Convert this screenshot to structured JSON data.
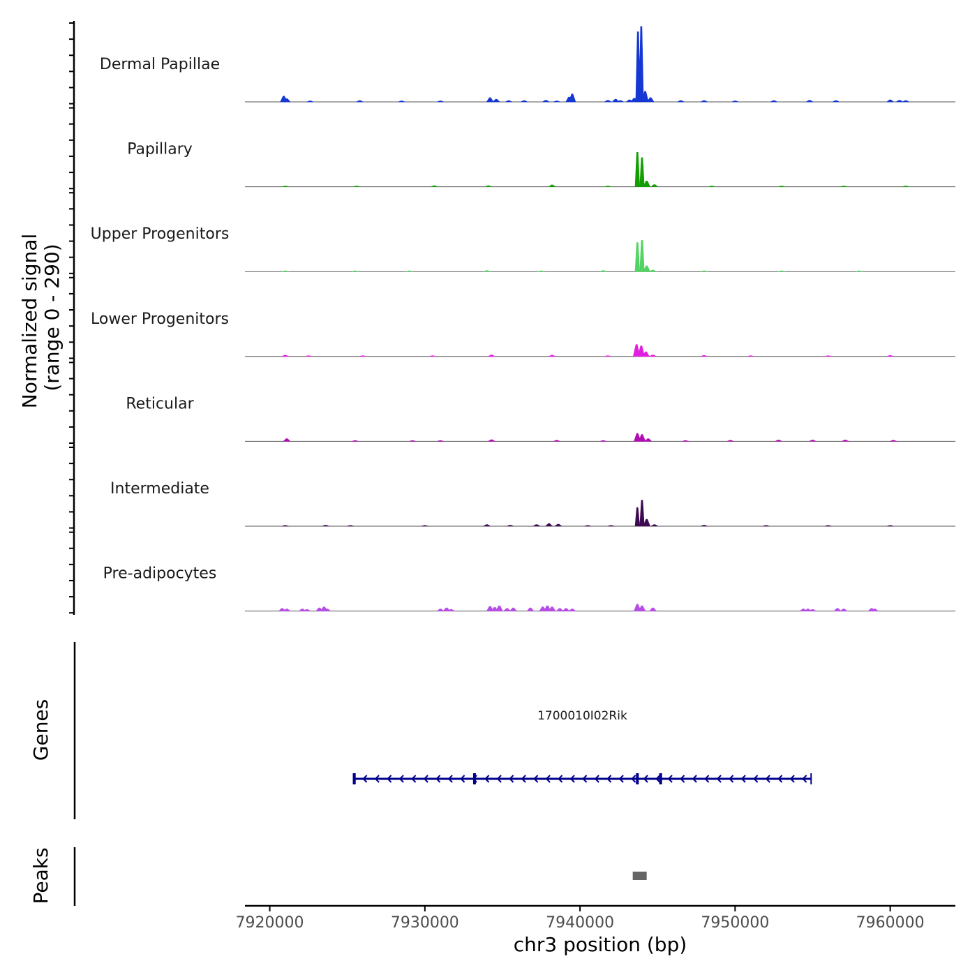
{
  "chart_data": {
    "type": "area",
    "title": "",
    "ylabel": "Normalized signal",
    "ylabel_range": "(range 0 - 290)",
    "ylim": [
      0,
      290
    ],
    "xlabel": "chr3 position (bp)",
    "xlim": [
      7918400,
      7964200
    ],
    "x_ticks": [
      7920000,
      7930000,
      7940000,
      7950000,
      7960000
    ],
    "x_tick_labels": [
      "7920000",
      "7930000",
      "7940000",
      "7950000",
      "7960000"
    ],
    "tracks": [
      {
        "name": "Dermal Papillae",
        "color": "#1537d4",
        "peaks": [
          {
            "x": 7920900,
            "y": 22
          },
          {
            "x": 7921100,
            "y": 12
          },
          {
            "x": 7922600,
            "y": 4
          },
          {
            "x": 7925800,
            "y": 5
          },
          {
            "x": 7928500,
            "y": 4
          },
          {
            "x": 7931000,
            "y": 4
          },
          {
            "x": 7934200,
            "y": 16
          },
          {
            "x": 7934600,
            "y": 10
          },
          {
            "x": 7935400,
            "y": 5
          },
          {
            "x": 7936400,
            "y": 5
          },
          {
            "x": 7937800,
            "y": 6
          },
          {
            "x": 7938500,
            "y": 4
          },
          {
            "x": 7939300,
            "y": 18
          },
          {
            "x": 7939500,
            "y": 30
          },
          {
            "x": 7941800,
            "y": 6
          },
          {
            "x": 7942300,
            "y": 10
          },
          {
            "x": 7942600,
            "y": 5
          },
          {
            "x": 7943200,
            "y": 8
          },
          {
            "x": 7943500,
            "y": 14
          },
          {
            "x": 7943740,
            "y": 265
          },
          {
            "x": 7943950,
            "y": 285
          },
          {
            "x": 7944200,
            "y": 40
          },
          {
            "x": 7944550,
            "y": 16
          },
          {
            "x": 7946500,
            "y": 5
          },
          {
            "x": 7948000,
            "y": 5
          },
          {
            "x": 7950000,
            "y": 4
          },
          {
            "x": 7952500,
            "y": 5
          },
          {
            "x": 7954800,
            "y": 6
          },
          {
            "x": 7956500,
            "y": 5
          },
          {
            "x": 7960000,
            "y": 8
          },
          {
            "x": 7960600,
            "y": 6
          },
          {
            "x": 7961000,
            "y": 5
          }
        ]
      },
      {
        "name": "Papillary",
        "color": "#139e02",
        "peaks": [
          {
            "x": 7921000,
            "y": 3
          },
          {
            "x": 7925600,
            "y": 3
          },
          {
            "x": 7930600,
            "y": 4
          },
          {
            "x": 7934100,
            "y": 4
          },
          {
            "x": 7938200,
            "y": 7
          },
          {
            "x": 7941800,
            "y": 3
          },
          {
            "x": 7943700,
            "y": 130
          },
          {
            "x": 7944000,
            "y": 110
          },
          {
            "x": 7944300,
            "y": 22
          },
          {
            "x": 7944800,
            "y": 8
          },
          {
            "x": 7948500,
            "y": 3
          },
          {
            "x": 7953000,
            "y": 3
          },
          {
            "x": 7957000,
            "y": 3
          },
          {
            "x": 7961000,
            "y": 3
          }
        ]
      },
      {
        "name": "Upper Progenitors",
        "color": "#52d462",
        "peaks": [
          {
            "x": 7921000,
            "y": 3
          },
          {
            "x": 7925500,
            "y": 3
          },
          {
            "x": 7929000,
            "y": 3
          },
          {
            "x": 7934000,
            "y": 4
          },
          {
            "x": 7937500,
            "y": 3
          },
          {
            "x": 7941500,
            "y": 4
          },
          {
            "x": 7943700,
            "y": 110
          },
          {
            "x": 7944000,
            "y": 118
          },
          {
            "x": 7944300,
            "y": 22
          },
          {
            "x": 7944700,
            "y": 6
          },
          {
            "x": 7948000,
            "y": 3
          },
          {
            "x": 7953000,
            "y": 3
          },
          {
            "x": 7958000,
            "y": 3
          }
        ]
      },
      {
        "name": "Lower Progenitors",
        "color": "#e01fe0",
        "peaks": [
          {
            "x": 7921000,
            "y": 5
          },
          {
            "x": 7922500,
            "y": 3
          },
          {
            "x": 7926000,
            "y": 3
          },
          {
            "x": 7930500,
            "y": 3
          },
          {
            "x": 7934300,
            "y": 6
          },
          {
            "x": 7938200,
            "y": 5
          },
          {
            "x": 7941800,
            "y": 3
          },
          {
            "x": 7943650,
            "y": 45
          },
          {
            "x": 7943950,
            "y": 40
          },
          {
            "x": 7944250,
            "y": 18
          },
          {
            "x": 7944700,
            "y": 6
          },
          {
            "x": 7948000,
            "y": 4
          },
          {
            "x": 7951000,
            "y": 3
          },
          {
            "x": 7956000,
            "y": 3
          },
          {
            "x": 7960000,
            "y": 4
          }
        ]
      },
      {
        "name": "Reticular",
        "color": "#b00eb0",
        "peaks": [
          {
            "x": 7921100,
            "y": 10
          },
          {
            "x": 7925500,
            "y": 3
          },
          {
            "x": 7929200,
            "y": 3
          },
          {
            "x": 7931000,
            "y": 3
          },
          {
            "x": 7934300,
            "y": 6
          },
          {
            "x": 7938500,
            "y": 4
          },
          {
            "x": 7941500,
            "y": 3
          },
          {
            "x": 7943700,
            "y": 30
          },
          {
            "x": 7944000,
            "y": 26
          },
          {
            "x": 7944400,
            "y": 10
          },
          {
            "x": 7946800,
            "y": 3
          },
          {
            "x": 7949700,
            "y": 4
          },
          {
            "x": 7952800,
            "y": 5
          },
          {
            "x": 7955000,
            "y": 5
          },
          {
            "x": 7957100,
            "y": 5
          },
          {
            "x": 7960200,
            "y": 4
          }
        ]
      },
      {
        "name": "Intermediate",
        "color": "#3d0a52",
        "peaks": [
          {
            "x": 7921000,
            "y": 3
          },
          {
            "x": 7923600,
            "y": 4
          },
          {
            "x": 7925200,
            "y": 3
          },
          {
            "x": 7930000,
            "y": 3
          },
          {
            "x": 7934000,
            "y": 6
          },
          {
            "x": 7935500,
            "y": 4
          },
          {
            "x": 7937200,
            "y": 6
          },
          {
            "x": 7938000,
            "y": 10
          },
          {
            "x": 7938600,
            "y": 8
          },
          {
            "x": 7940500,
            "y": 3
          },
          {
            "x": 7942000,
            "y": 3
          },
          {
            "x": 7943700,
            "y": 70
          },
          {
            "x": 7944000,
            "y": 98
          },
          {
            "x": 7944300,
            "y": 26
          },
          {
            "x": 7944800,
            "y": 6
          },
          {
            "x": 7948000,
            "y": 4
          },
          {
            "x": 7952000,
            "y": 3
          },
          {
            "x": 7956000,
            "y": 3
          },
          {
            "x": 7960000,
            "y": 3
          }
        ]
      },
      {
        "name": "Pre-adipocytes",
        "color": "#b84de6",
        "peaks": [
          {
            "x": 7920800,
            "y": 10
          },
          {
            "x": 7921100,
            "y": 8
          },
          {
            "x": 7922100,
            "y": 8
          },
          {
            "x": 7922400,
            "y": 6
          },
          {
            "x": 7923200,
            "y": 12
          },
          {
            "x": 7923500,
            "y": 16
          },
          {
            "x": 7923700,
            "y": 8
          },
          {
            "x": 7931000,
            "y": 8
          },
          {
            "x": 7931400,
            "y": 12
          },
          {
            "x": 7931700,
            "y": 6
          },
          {
            "x": 7934200,
            "y": 18
          },
          {
            "x": 7934500,
            "y": 14
          },
          {
            "x": 7934800,
            "y": 20
          },
          {
            "x": 7935300,
            "y": 10
          },
          {
            "x": 7935700,
            "y": 12
          },
          {
            "x": 7936800,
            "y": 12
          },
          {
            "x": 7937600,
            "y": 16
          },
          {
            "x": 7937900,
            "y": 20
          },
          {
            "x": 7938200,
            "y": 16
          },
          {
            "x": 7938700,
            "y": 10
          },
          {
            "x": 7939100,
            "y": 10
          },
          {
            "x": 7939500,
            "y": 8
          },
          {
            "x": 7943700,
            "y": 26
          },
          {
            "x": 7944000,
            "y": 20
          },
          {
            "x": 7944700,
            "y": 12
          },
          {
            "x": 7954400,
            "y": 8
          },
          {
            "x": 7954700,
            "y": 8
          },
          {
            "x": 7955000,
            "y": 6
          },
          {
            "x": 7956600,
            "y": 10
          },
          {
            "x": 7957000,
            "y": 8
          },
          {
            "x": 7958800,
            "y": 10
          },
          {
            "x": 7959000,
            "y": 8
          }
        ]
      }
    ],
    "genes": {
      "axis_label": "Genes",
      "items": [
        {
          "name": "1700010I02Rik",
          "start": 7925400,
          "end": 7954900,
          "strand": "-",
          "exons": [
            7925450,
            7933200,
            7943700,
            7945200
          ],
          "color": "#00008b"
        }
      ]
    },
    "peaks": {
      "axis_label": "Peaks",
      "regions": [
        {
          "start": 7943400,
          "end": 7944300,
          "color": "#666666"
        }
      ]
    }
  }
}
